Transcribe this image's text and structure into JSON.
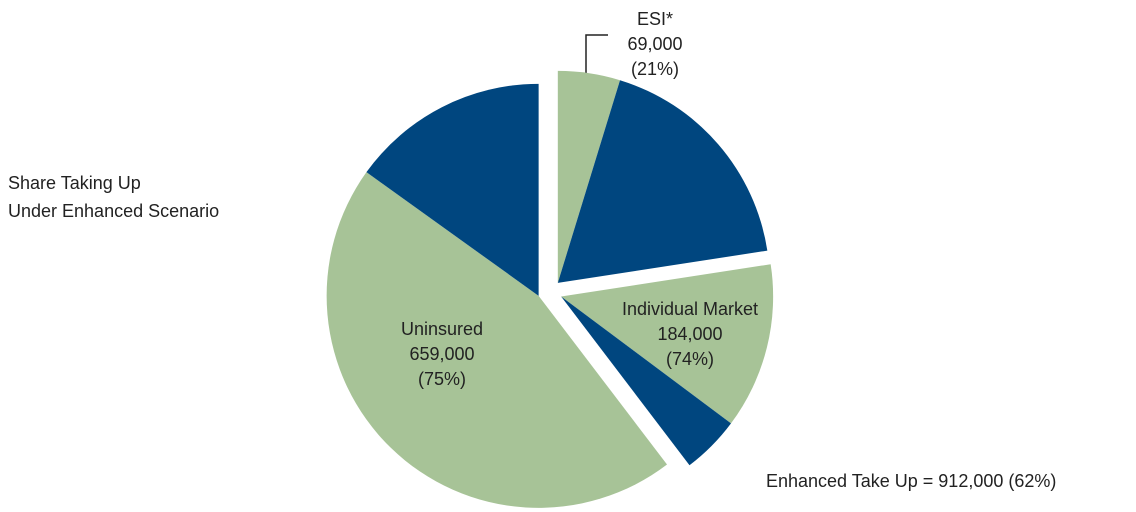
{
  "chart_data": {
    "type": "pie",
    "categories": [
      "ESI*",
      "Individual Market",
      "Uninsured"
    ],
    "values": [
      69000,
      184000,
      659000
    ],
    "value_labels": [
      "69,000",
      "184,000",
      "659,000"
    ],
    "shares": [
      21,
      74,
      75
    ],
    "share_labels": [
      "(21%)",
      "(74%)",
      "(75%)"
    ],
    "colors": {
      "taking_up": "#a7c397",
      "not_taking_up": "#00467f"
    },
    "legend_lines": [
      "Share Taking Up",
      "Under Enhanced Scenario"
    ],
    "annotation": "Enhanced Take Up = 912,000 (62%)"
  }
}
